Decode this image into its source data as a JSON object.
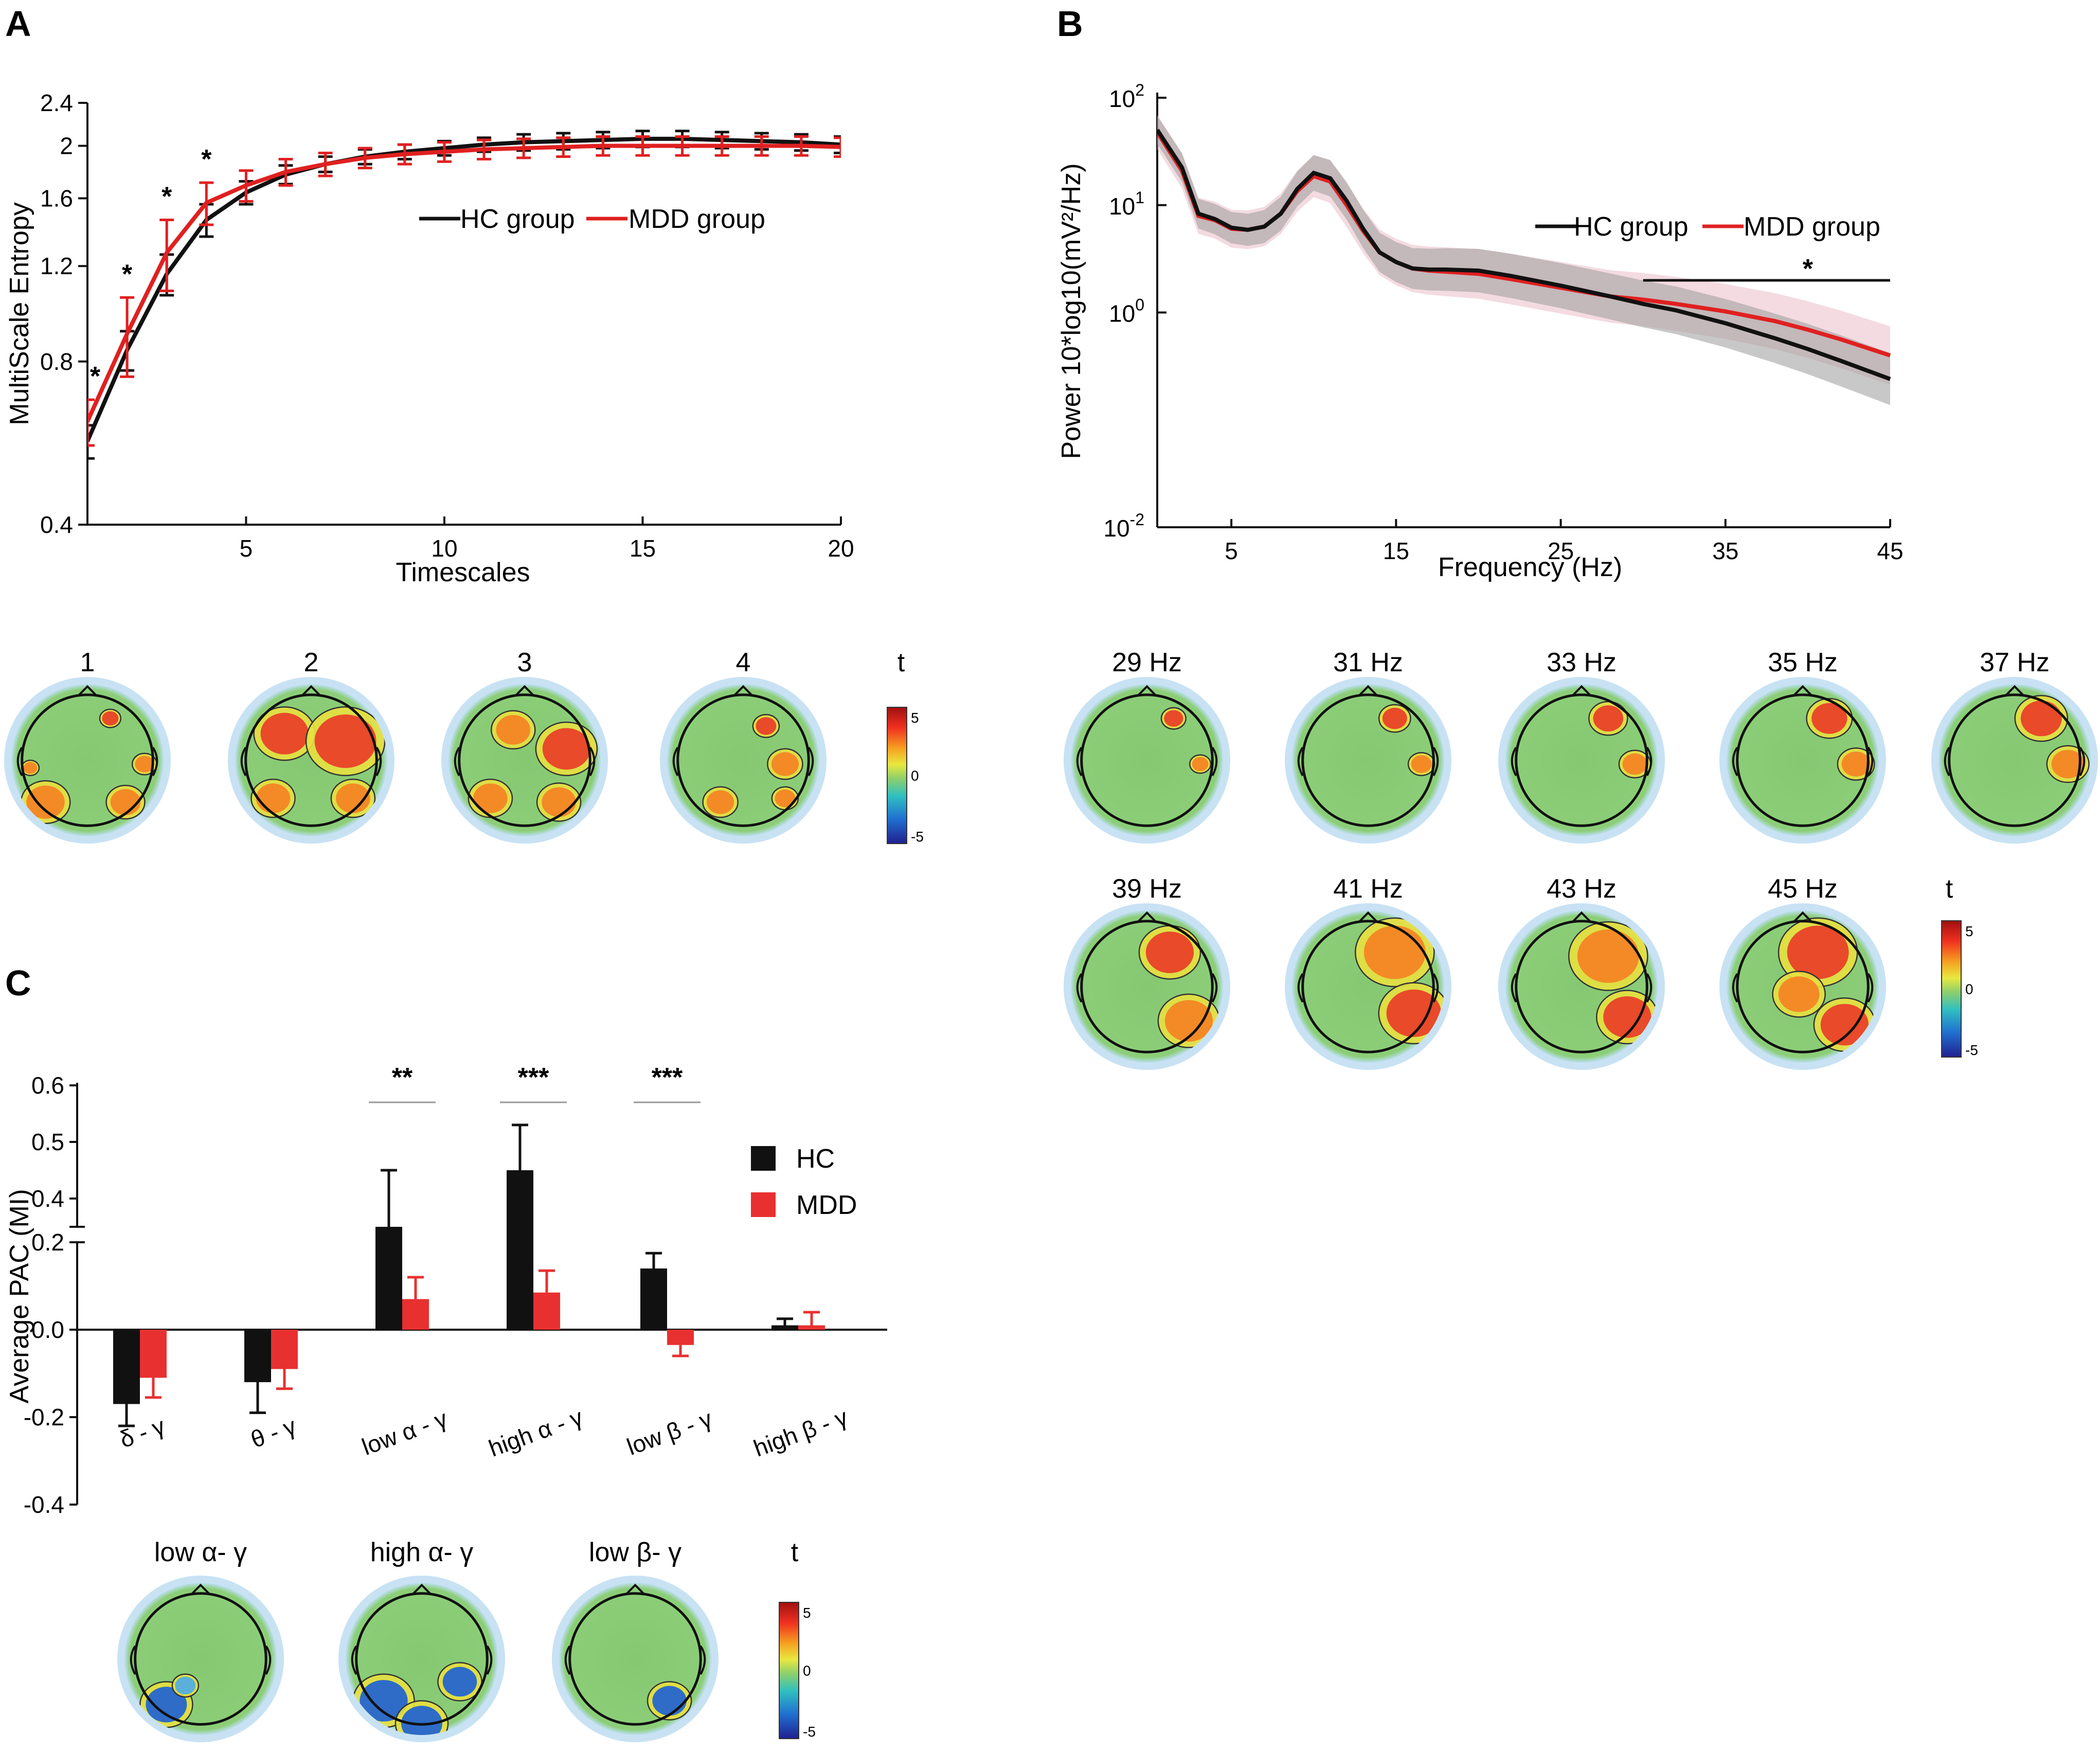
{
  "panels": {
    "a": "A",
    "b": "B",
    "c": "C"
  },
  "chart_data": [
    {
      "type": "line",
      "panel": "A",
      "xlabel": "Timescales",
      "ylabel": "MultiScale Entropy",
      "x_ticks": [
        "5",
        "10",
        "15",
        "20"
      ],
      "y_ticks": [
        "0.4",
        "0.8",
        "1.2",
        "1.6",
        "2",
        "2.4"
      ],
      "xlim": [
        1,
        20
      ],
      "ylim": [
        0.4,
        2.4
      ],
      "x": [
        1,
        2,
        3,
        4,
        5,
        6,
        7,
        8,
        9,
        10,
        11,
        12,
        13,
        14,
        15,
        16,
        17,
        18,
        19,
        20
      ],
      "series": [
        {
          "name": "HC group",
          "color": "#111111",
          "values": [
            0.57,
            0.84,
            1.16,
            1.46,
            1.64,
            1.77,
            1.85,
            1.91,
            1.95,
            1.98,
            2.01,
            2.03,
            2.04,
            2.05,
            2.06,
            2.06,
            2.05,
            2.04,
            2.03,
            2.01
          ],
          "err": [
            0.04,
            0.07,
            0.1,
            0.1,
            0.08,
            0.07,
            0.06,
            0.06,
            0.06,
            0.06,
            0.06,
            0.07,
            0.07,
            0.07,
            0.07,
            0.07,
            0.07,
            0.07,
            0.07,
            0.07
          ]
        },
        {
          "name": "MDD group",
          "color": "#e02020",
          "values": [
            0.62,
            0.9,
            1.27,
            1.57,
            1.69,
            1.79,
            1.85,
            1.9,
            1.93,
            1.95,
            1.97,
            1.98,
            1.99,
            2.0,
            2.0,
            2.0,
            2.0,
            2.0,
            2.0,
            1.99
          ],
          "err": [
            0.06,
            0.15,
            0.19,
            0.14,
            0.11,
            0.1,
            0.09,
            0.08,
            0.08,
            0.08,
            0.08,
            0.08,
            0.08,
            0.08,
            0.08,
            0.08,
            0.08,
            0.08,
            0.08,
            0.08
          ]
        }
      ],
      "significance": [
        "*",
        "*",
        "*",
        "*"
      ],
      "legend": [
        "HC group",
        "MDD group"
      ]
    },
    {
      "type": "line",
      "panel": "B",
      "xlabel": "Frequency (Hz)",
      "ylabel": "Power 10*log10(mV²/Hz)",
      "x_ticks": [
        "5",
        "15",
        "25",
        "35",
        "45"
      ],
      "y_ticks": [
        "10-2",
        "100",
        "101",
        "102"
      ],
      "xlim": [
        0.5,
        45
      ],
      "ylim_log10": [
        -2,
        2
      ],
      "x": [
        0.5,
        2,
        3,
        4,
        5,
        6,
        7,
        8,
        9,
        10,
        11,
        12,
        13,
        14,
        15,
        16,
        17,
        18,
        20,
        22,
        25,
        28,
        30,
        32,
        35,
        38,
        40,
        42,
        45
      ],
      "series": [
        {
          "name": "HC group",
          "color": "#111111",
          "values": [
            1.7,
            1.35,
            0.92,
            0.87,
            0.79,
            0.77,
            0.8,
            0.92,
            1.15,
            1.3,
            1.25,
            1.04,
            0.78,
            0.56,
            0.47,
            0.41,
            0.4,
            0.4,
            0.39,
            0.34,
            0.25,
            0.15,
            0.08,
            0.02,
            -0.1,
            -0.24,
            -0.34,
            -0.45,
            -0.62
          ]
        },
        {
          "name": "MDD group",
          "color": "#e02020",
          "values": [
            1.68,
            1.32,
            0.9,
            0.86,
            0.78,
            0.77,
            0.8,
            0.92,
            1.13,
            1.27,
            1.22,
            1.0,
            0.76,
            0.56,
            0.47,
            0.41,
            0.39,
            0.38,
            0.36,
            0.31,
            0.23,
            0.15,
            0.12,
            0.08,
            0.01,
            -0.08,
            -0.16,
            -0.25,
            -0.4
          ]
        }
      ],
      "significance_label": "*",
      "significance_range": [
        30,
        45
      ],
      "legend": [
        "HC group",
        "MDD group"
      ]
    },
    {
      "type": "bar",
      "panel": "C",
      "ylabel": "Average PAC (MI)",
      "y_ticks_top": [
        "0.4",
        "0.5",
        "0.6"
      ],
      "y_ticks_bottom": [
        "-0.4",
        "-0.2",
        "0.0",
        "0.2"
      ],
      "categories": [
        "δ - γ",
        "θ - γ",
        "low α - γ",
        "high α - γ",
        "low β - γ",
        "high β - γ"
      ],
      "series": [
        {
          "name": "HC",
          "color": "#111111",
          "values": [
            -0.17,
            -0.12,
            0.35,
            0.45,
            0.14,
            0.01
          ],
          "err": [
            0.05,
            0.07,
            0.1,
            0.08,
            0.035,
            0.015
          ]
        },
        {
          "name": "MDD",
          "color": "#e83030",
          "values": [
            -0.11,
            -0.09,
            0.07,
            0.085,
            -0.035,
            0.01
          ],
          "err": [
            0.045,
            0.045,
            0.05,
            0.05,
            0.025,
            0.03
          ]
        }
      ],
      "significance": [
        {
          "category": "low α - γ",
          "label": "**"
        },
        {
          "category": "high α - γ",
          "label": "***"
        },
        {
          "category": "low β - γ",
          "label": "***"
        }
      ],
      "legend": [
        "HC",
        "MDD"
      ]
    }
  ],
  "topomaps": {
    "a_labels": [
      "1",
      "2",
      "3",
      "4"
    ],
    "b_labels_row1": [
      "29 Hz",
      "31 Hz",
      "33 Hz",
      "35 Hz",
      "37 Hz"
    ],
    "b_labels_row2": [
      "39 Hz",
      "41 Hz",
      "43 Hz",
      "45 Hz"
    ],
    "c_labels": [
      "low α- γ",
      "high α- γ",
      "low β- γ"
    ],
    "colorbar_title": "t",
    "colorbar_ticks": [
      "5",
      "0",
      "-5"
    ]
  }
}
